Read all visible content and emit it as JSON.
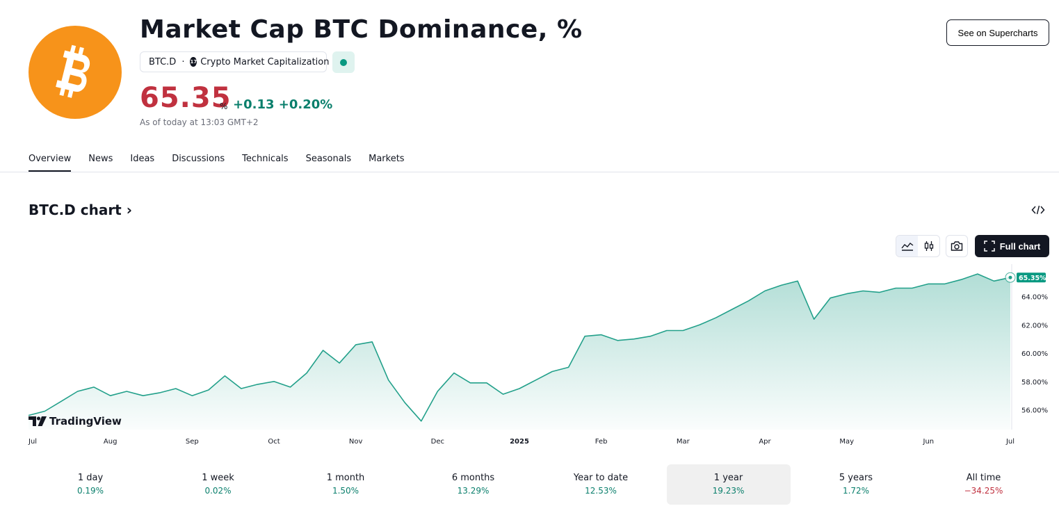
{
  "header": {
    "title": "Market Cap BTC Dominance, %",
    "symbol": "BTC.D",
    "separator": "·",
    "exchange_logo_text": "17",
    "exchange": "Crypto Market Capitalization",
    "price": "65.35",
    "price_unit": "%",
    "change": "+0.13 +0.20%",
    "as_of": "As of today at 13:03 GMT+2",
    "supercharts_button": "See on Supercharts",
    "brand_color": "#f7931a",
    "negative_color": "#c0313f",
    "positive_color": "#0a7f6c"
  },
  "tabs": [
    {
      "label": "Overview",
      "active": true
    },
    {
      "label": "News"
    },
    {
      "label": "Ideas"
    },
    {
      "label": "Discussions"
    },
    {
      "label": "Technicals"
    },
    {
      "label": "Seasonals"
    },
    {
      "label": "Markets"
    }
  ],
  "chart_section": {
    "title": "BTC.D chart",
    "title_chevron": "›",
    "full_chart_button": "Full chart",
    "watermark": "TradingView"
  },
  "chart_data": {
    "type": "area",
    "line_color": "#22a08a",
    "x_ticks": [
      "Jul",
      "Aug",
      "Sep",
      "Oct",
      "Nov",
      "Dec",
      "2025",
      "Feb",
      "Mar",
      "Apr",
      "May",
      "Jun",
      "Jul"
    ],
    "y_ticks": [
      "56.00%",
      "58.00%",
      "60.00%",
      "62.00%",
      "64.00%"
    ],
    "ylim": [
      54.6,
      65.9
    ],
    "last_value_label": "65.35%",
    "series": [
      {
        "x": [
          0,
          0.2,
          0.4,
          0.6,
          0.8,
          1,
          1.2,
          1.4,
          1.6,
          1.8,
          2,
          2.2,
          2.4,
          2.6,
          2.8,
          3,
          3.2,
          3.4,
          3.6,
          3.8,
          4,
          4.2,
          4.4,
          4.6,
          4.8,
          5,
          5.2,
          5.4,
          5.6,
          5.8,
          6,
          6.2,
          6.4,
          6.6,
          6.8,
          7,
          7.2,
          7.4,
          7.6,
          7.8,
          8,
          8.2,
          8.4,
          8.6,
          8.8,
          9,
          9.2,
          9.4,
          9.6,
          9.8,
          10,
          10.2,
          10.4,
          10.6,
          10.8,
          11,
          11.2,
          11.4,
          11.6,
          11.8,
          12
        ],
        "values": [
          55.6,
          55.9,
          56.6,
          57.3,
          57.6,
          57.0,
          57.3,
          57.0,
          57.2,
          57.5,
          57.0,
          57.4,
          58.4,
          57.5,
          57.8,
          58.0,
          57.6,
          58.6,
          60.2,
          59.3,
          60.6,
          60.8,
          58.1,
          56.5,
          55.2,
          57.3,
          58.6,
          57.9,
          57.9,
          57.1,
          57.5,
          58.1,
          58.7,
          59.0,
          61.2,
          61.3,
          60.9,
          61.0,
          61.2,
          61.6,
          61.6,
          62.0,
          62.5,
          63.1,
          63.7,
          64.4,
          64.8,
          65.1,
          62.4,
          63.9,
          64.2,
          64.4,
          64.3,
          64.6,
          64.6,
          64.9,
          64.9,
          65.2,
          65.6,
          65.1,
          65.35
        ]
      }
    ]
  },
  "periods": [
    {
      "label": "1 day",
      "value": "0.19%",
      "sign": "pos"
    },
    {
      "label": "1 week",
      "value": "0.02%",
      "sign": "pos"
    },
    {
      "label": "1 month",
      "value": "1.50%",
      "sign": "pos"
    },
    {
      "label": "6 months",
      "value": "13.29%",
      "sign": "pos"
    },
    {
      "label": "Year to date",
      "value": "12.53%",
      "sign": "pos"
    },
    {
      "label": "1 year",
      "value": "19.23%",
      "sign": "pos",
      "selected": true
    },
    {
      "label": "5 years",
      "value": "1.72%",
      "sign": "pos"
    },
    {
      "label": "All time",
      "value": "−34.25%",
      "sign": "neg"
    }
  ]
}
